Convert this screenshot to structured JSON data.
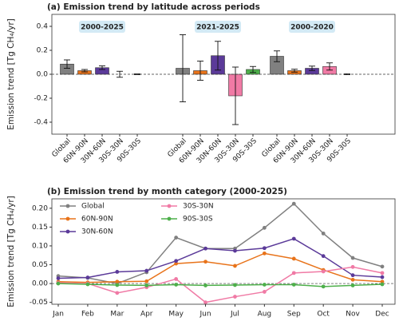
{
  "chart_data": [
    {
      "type": "grouped_bar_error",
      "title": "(a) Emission trend by latitude across periods",
      "ylabel": "Emission trend [Tg CH₄/yr]",
      "ylim": [
        -0.5,
        0.5
      ],
      "yticks": [
        -0.4,
        -0.2,
        {
          "value": 0,
          "label": "0.0"
        },
        0.2,
        0.4
      ],
      "reference_line": 0,
      "groups": [
        {
          "name": "2000-2025",
          "categories": [
            "Global",
            "60N-90N",
            "30N-60N",
            "30S-30N",
            "90S-30S"
          ],
          "colors": [
            "#808080",
            "#e8731a",
            "#5b3a99",
            "#f07aa5",
            "#4daf4a"
          ],
          "values": [
            0.085,
            0.03,
            0.055,
            0.0,
            0.0
          ],
          "errors": [
            0.035,
            0.01,
            0.015,
            0.025,
            0.003
          ]
        },
        {
          "name": "2021-2025",
          "categories": [
            "Global",
            "60N-90N",
            "30N-60N",
            "30S-30N",
            "90S-30S"
          ],
          "colors": [
            "#808080",
            "#e8731a",
            "#5b3a99",
            "#f07aa5",
            "#4daf4a"
          ],
          "values": [
            0.05,
            0.03,
            0.155,
            -0.18,
            0.04
          ],
          "errors": [
            0.28,
            0.08,
            0.12,
            0.24,
            0.025
          ]
        },
        {
          "name": "2000-2020",
          "categories": [
            "Global",
            "60N-90N",
            "30N-60N",
            "30S-30N",
            "90S-30S"
          ],
          "colors": [
            "#808080",
            "#e8731a",
            "#5b3a99",
            "#f07aa5",
            "#4daf4a"
          ],
          "values": [
            0.15,
            0.03,
            0.05,
            0.065,
            0.0
          ],
          "errors": [
            0.045,
            0.012,
            0.018,
            0.03,
            0.003
          ]
        }
      ]
    },
    {
      "type": "line",
      "title": "(b) Emission trend by month category (2000-2025)",
      "ylabel": "Emission trend [Tg CH₄/yr]",
      "categories": [
        "Jan",
        "Feb",
        "Mar",
        "Apr",
        "May",
        "Jun",
        "Jul",
        "Aug",
        "Sep",
        "Oct",
        "Nov",
        "Dec"
      ],
      "ylim": [
        -0.055,
        0.225
      ],
      "yticks": [
        -0.05,
        {
          "value": 0,
          "label": "0.00"
        },
        0.05,
        {
          "value": 0.1,
          "label": "0.10"
        },
        0.15,
        {
          "value": 0.2,
          "label": "0.20"
        }
      ],
      "reference_line": 0,
      "legend": "upper left",
      "series": [
        {
          "name": "Global",
          "color": "#808080",
          "values": [
            0.02,
            0.015,
            0.0,
            0.03,
            0.122,
            0.093,
            0.093,
            0.148,
            0.212,
            0.133,
            0.068,
            0.045
          ]
        },
        {
          "name": "60N-90N",
          "color": "#e8731a",
          "values": [
            0.005,
            0.003,
            0.005,
            0.006,
            0.053,
            0.058,
            0.047,
            0.08,
            0.066,
            0.036,
            0.01,
            0.005
          ]
        },
        {
          "name": "30N-60N",
          "color": "#5b3a99",
          "values": [
            0.014,
            0.016,
            0.031,
            0.034,
            0.06,
            0.093,
            0.087,
            0.094,
            0.119,
            0.073,
            0.022,
            0.017
          ]
        },
        {
          "name": "30S-30N",
          "color": "#f07aa5",
          "values": [
            0.002,
            0.0,
            -0.025,
            -0.01,
            0.012,
            -0.05,
            -0.035,
            -0.022,
            0.028,
            0.032,
            0.044,
            0.028
          ]
        },
        {
          "name": "90S-30S",
          "color": "#4daf4a",
          "values": [
            0.0,
            -0.002,
            -0.004,
            -0.005,
            -0.003,
            -0.005,
            -0.004,
            -0.003,
            -0.003,
            -0.008,
            -0.005,
            -0.002
          ]
        }
      ]
    }
  ]
}
